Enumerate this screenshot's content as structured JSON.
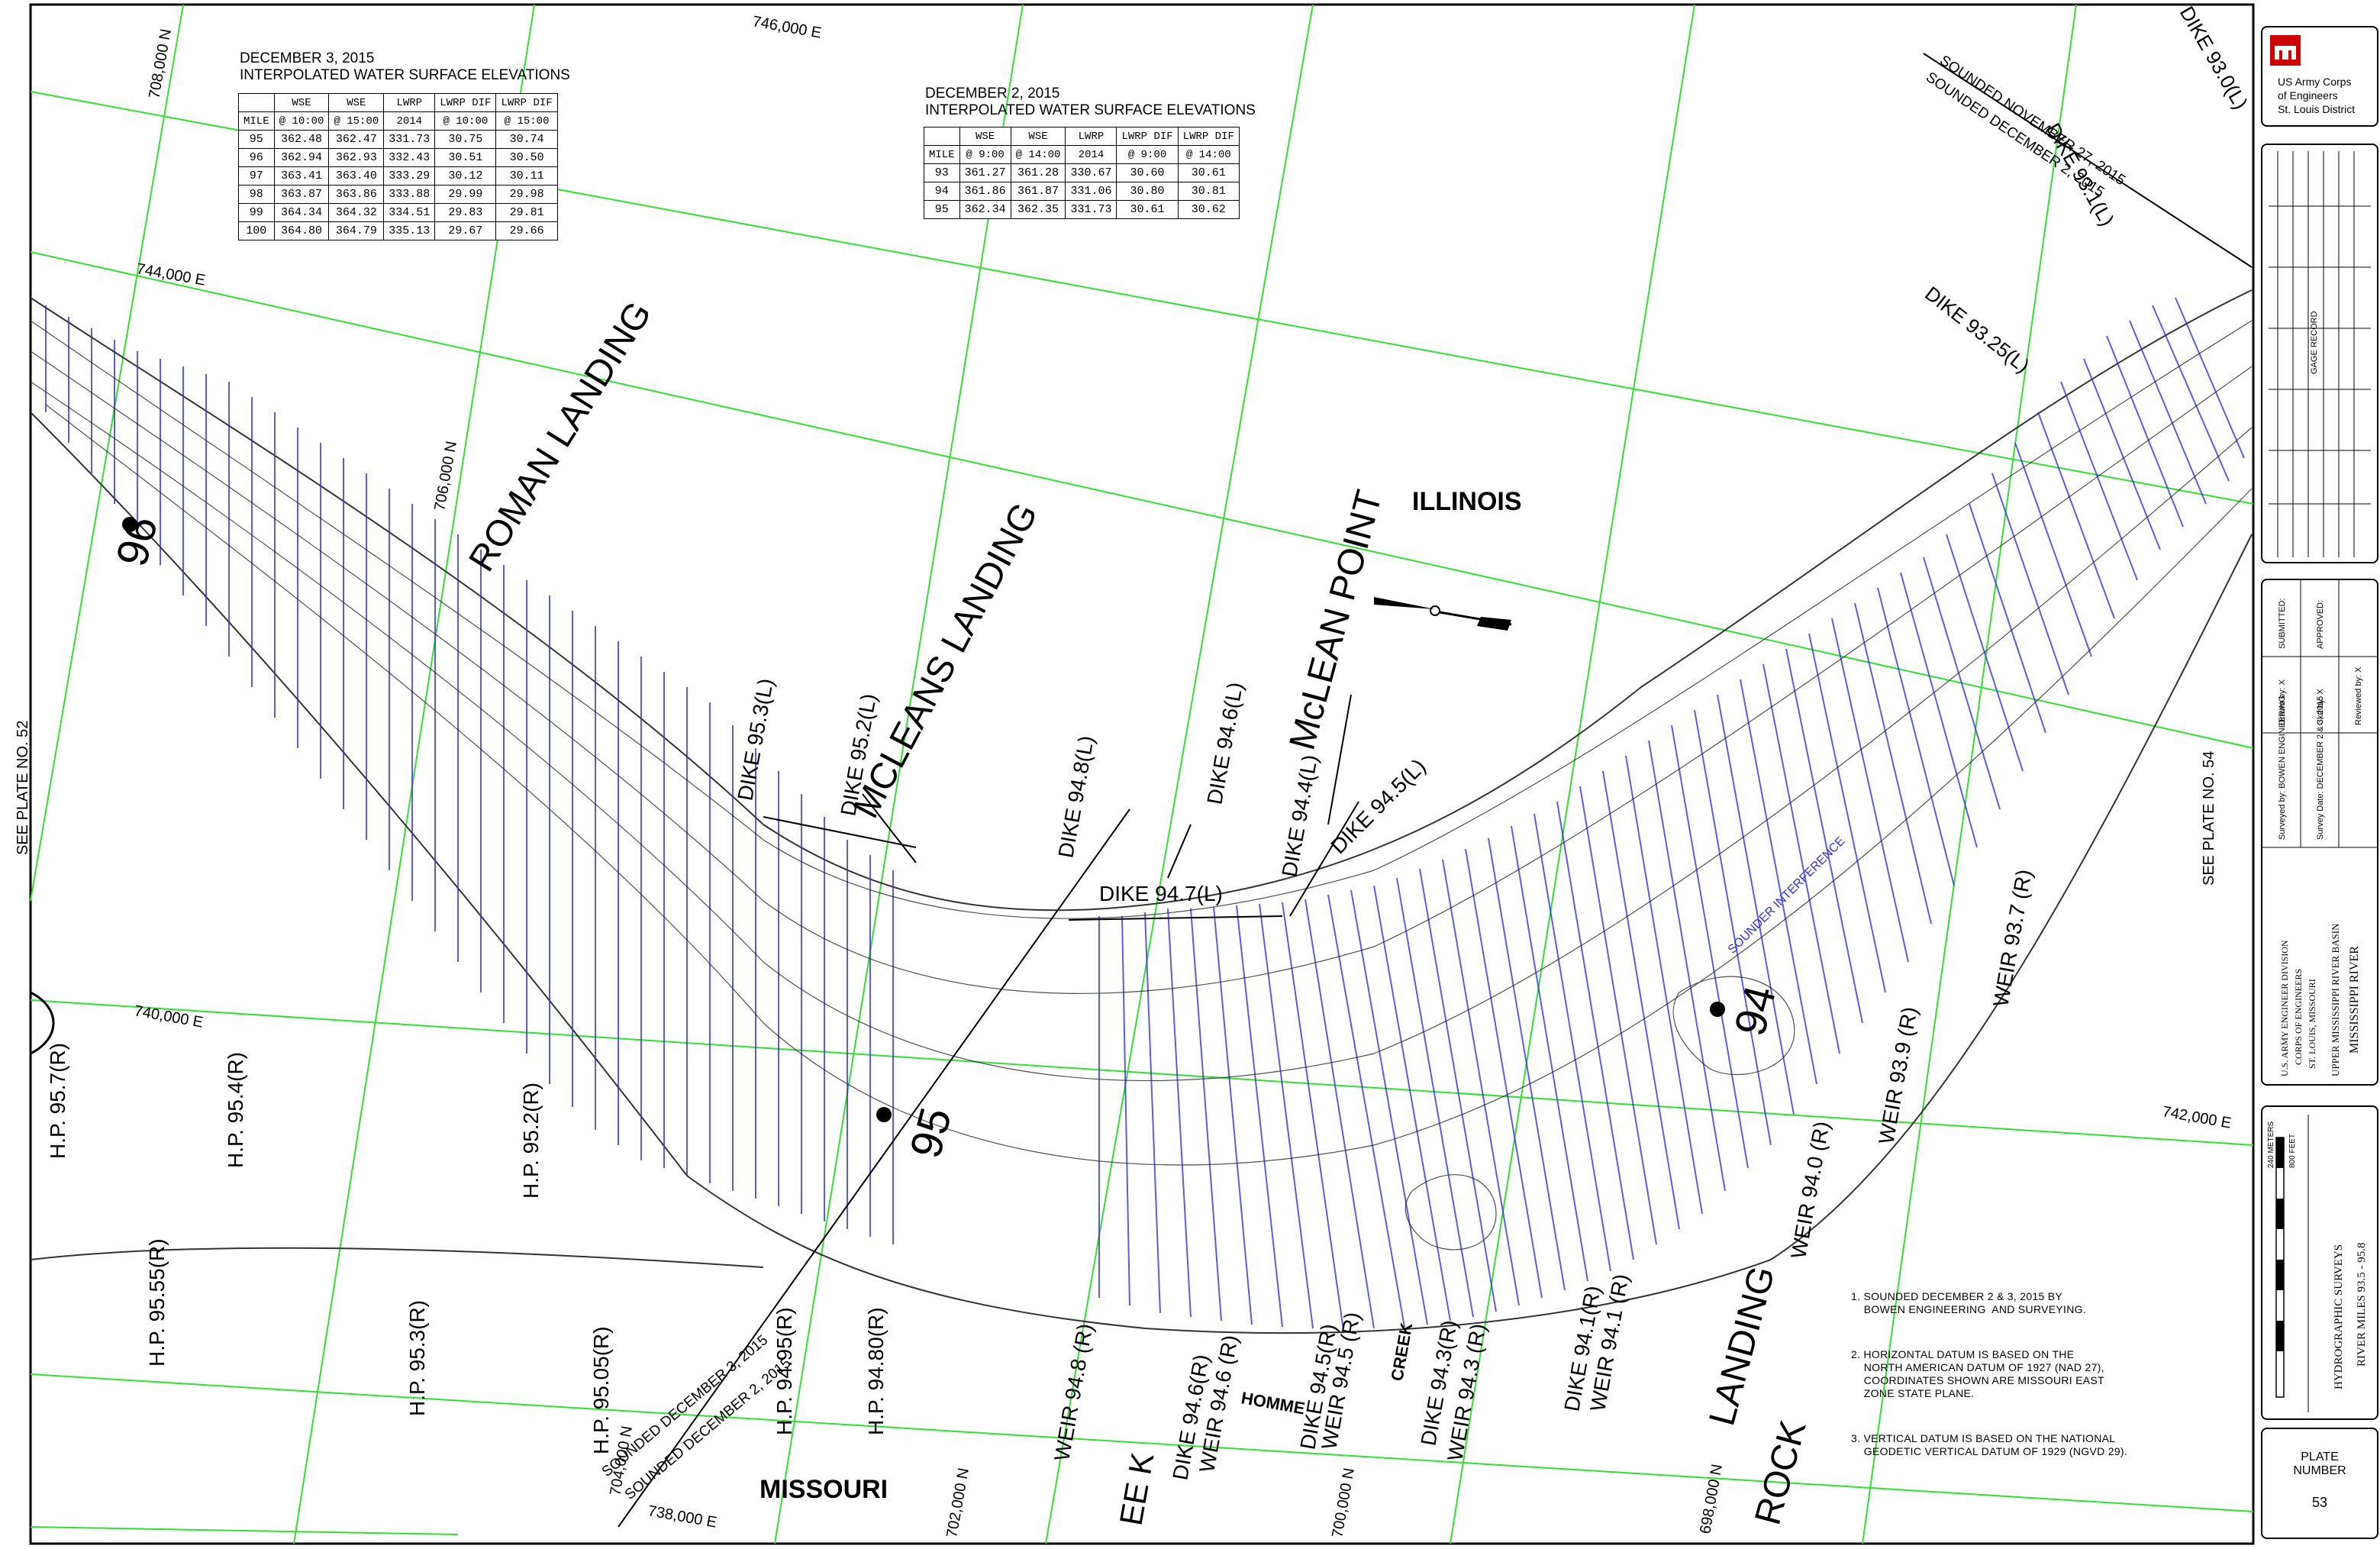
{
  "table_dec3": {
    "title1": "DECEMBER 3, 2015",
    "title2": "INTERPOLATED WATER SURFACE ELEVATIONS",
    "header1": [
      "",
      "WSE",
      "WSE",
      "LWRP",
      "LWRP DIF",
      "LWRP DIF"
    ],
    "header2": [
      "MILE",
      "@ 10:00",
      "@ 15:00",
      "2014",
      "@ 10:00",
      "@ 15:00"
    ],
    "rows": [
      [
        "95",
        "362.48",
        "362.47",
        "331.73",
        "30.75",
        "30.74"
      ],
      [
        "96",
        "362.94",
        "362.93",
        "332.43",
        "30.51",
        "30.50"
      ],
      [
        "97",
        "363.41",
        "363.40",
        "333.29",
        "30.12",
        "30.11"
      ],
      [
        "98",
        "363.87",
        "363.86",
        "333.88",
        "29.99",
        "29.98"
      ],
      [
        "99",
        "364.34",
        "364.32",
        "334.51",
        "29.83",
        "29.81"
      ],
      [
        "100",
        "364.80",
        "364.79",
        "335.13",
        "29.67",
        "29.66"
      ]
    ]
  },
  "table_dec2": {
    "title1": "DECEMBER 2, 2015",
    "title2": "INTERPOLATED WATER SURFACE ELEVATIONS",
    "header1": [
      "",
      "WSE",
      "WSE",
      "LWRP",
      "LWRP DIF",
      "LWRP DIF"
    ],
    "header2": [
      "MILE",
      "@ 9:00",
      "@ 14:00",
      "2014",
      "@ 9:00",
      "@ 14:00"
    ],
    "rows": [
      [
        "93",
        "361.27",
        "361.28",
        "330.67",
        "30.60",
        "30.61"
      ],
      [
        "94",
        "361.86",
        "361.87",
        "331.06",
        "30.80",
        "30.81"
      ],
      [
        "95",
        "362.34",
        "362.35",
        "331.73",
        "30.61",
        "30.62"
      ]
    ]
  },
  "map_labels": {
    "illinois": "ILLINOIS",
    "missouri": "MISSOURI",
    "roman_landing": "ROMAN LANDING",
    "mcleans_landing": "MCLEANS LANDING",
    "mclean_point": "McLEAN POINT",
    "rock_landing_1": "ROCK",
    "rock_landing_2": "LANDING",
    "mile_96": "96",
    "mile_95": "95",
    "mile_94": "94",
    "see_plate_52": "SEE PLATE NO. 52",
    "see_plate_54": "SEE PLATE NO. 54",
    "sounded_dec3": "SOUNDED DECEMBER 3, 2015",
    "sounded_dec2": "SOUNDED DECEMBER 2, 2015",
    "sounded_nov27": "SOUNDED NOVEMBER 27, 2015",
    "sounded_dec2_b": "SOUNDED DECEMBER 2, 2015",
    "dike_931": "DIKE 93.1(L)",
    "dike_930": "DIKE 93.0(L)",
    "dike_9325": "DIKE 93.25(L)",
    "dike_953": "DIKE 95.3(L)",
    "dike_952": "DIKE 95.2(L)",
    "dike_948": "DIKE 94.8(L)",
    "dike_946": "DIKE 94.6(L)",
    "dike_944": "DIKE 94.4(L)",
    "dike_945": "DIKE 94.5(L)",
    "dike_947": "DIKE 94.7(L)",
    "weir_937": "WEIR 93.7 (R)",
    "weir_939": "WEIR 93.9 (R)",
    "weir_940": "WEIR 94.0 (R)",
    "weir_948": "WEIR 94.8 (R)",
    "weir_946": "WEIR 94.6 (R)",
    "weir_945": "WEIR 94.5 (R)",
    "weir_943": "WEIR 94.3 (R)",
    "weir_941": "WEIR 94.1 (R)",
    "dike_946r": "DIKE 94.6(R)",
    "dike_945r": "DIKE 94.5(R)",
    "dike_943r": "DIKE 94.3(R)",
    "dike_941r": "DIKE 94.1(R)",
    "hp_957": "H.P. 95.7(R)",
    "hp_954": "H.P. 95.4(R)",
    "hp_952": "H.P. 95.2(R)",
    "hp_9555": "H.P. 95.55(R)",
    "hp_953": "H.P. 95.3(R)",
    "hp_9505": "H.P. 95.05(R)",
    "hp_9495": "H.P. 94.95(R)",
    "hp_9480": "H.P. 94.80(R)",
    "creek": "CREEK",
    "homme": "HOMME",
    "creek_k": "EE K",
    "grid_708n": "708,000 N",
    "grid_706n": "706,000 N",
    "grid_704n": "704,000 N",
    "grid_702n": "702,000 N",
    "grid_700n": "700,000 N",
    "grid_698n": "698,000 N",
    "grid_746e": "746,000 E",
    "grid_744e": "744,000 E",
    "grid_742e": "742,000 E",
    "grid_740e": "740,000 E",
    "grid_738e": "738,000 E",
    "interference": "SOUNDER INTERFERENCE"
  },
  "notes": [
    "1. SOUNDED DECEMBER 2 & 3, 2015 BY\n    BOWEN ENGINEERING  AND SURVEYING.",
    "2. HORIZONTAL DATUM IS BASED ON THE\n    NORTH AMERICAN DATUM OF 1927 (NAD 27),\n    COORDINATES SHOWN ARE MISSOURI EAST\n    ZONE STATE PLANE.",
    "3. VERTICAL DATUM IS BASED ON THE NATIONAL\n    GEODETIC VERTICAL DATUM OF 1929 (NGVD 29)."
  ],
  "title_block": {
    "agency1": "US Army Corps",
    "agency2": "of Engineers",
    "agency3": "St. Louis District",
    "gage_record": "GAGE RECORD",
    "division1": "U.S. ARMY ENGINEER DIVISION",
    "division2": "CORPS OF ENGINEERS",
    "division3": "ST. LOUIS, MISSOURI",
    "basin": "UPPER MISSISSIPPI RIVER BASIN",
    "river": "MISSISSIPPI RIVER",
    "survey": "HYDROGRAPHIC SURVEYS",
    "river_miles": "RIVER MILES 93.5 - 95.8",
    "plate_label1": "PLATE",
    "plate_label2": "NUMBER",
    "plate_number": "53",
    "surveyed_by": "Surveyed by: BOWEN ENGINEERING",
    "survey_date": "Survey Date: DECEMBER 2 & 3, 2015",
    "drawn_by": "Drawn by: X",
    "ckd_by": "Ckd by: X",
    "reviewed_by": "Reviewed by: X",
    "submitted": "SUBMITTED:",
    "approved": "APPROVED:",
    "scale_feet": "800 FEET",
    "scale_meters": "240 METERS"
  },
  "colors": {
    "grid": "#33dd33",
    "soundings": "#3333dd",
    "contour": "#222222",
    "brand": "#cc0000"
  }
}
